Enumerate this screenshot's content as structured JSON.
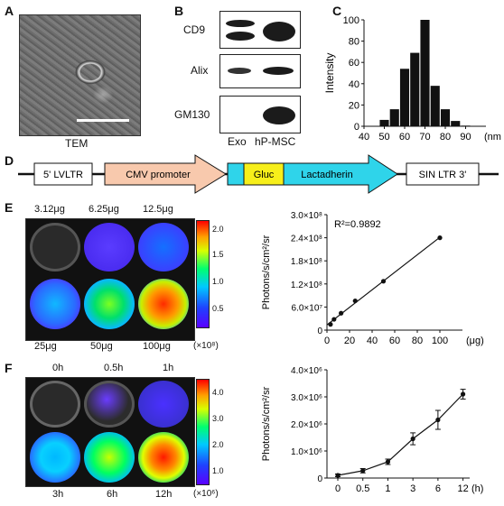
{
  "panels": {
    "A": {
      "label": "A",
      "caption": "TEM"
    },
    "B": {
      "label": "B",
      "rows": [
        "CD9",
        "Alix",
        "GM130"
      ],
      "lanes": [
        "Exo",
        "hP-MSC"
      ]
    },
    "C": {
      "label": "C"
    },
    "D": {
      "label": "D",
      "segments": [
        "5' LVLTR",
        "CMV promoter",
        "Gluc",
        "Lactadherin",
        "SIN LTR 3'"
      ]
    },
    "E": {
      "label": "E",
      "doses_top": [
        "3.12μg",
        "6.25μg",
        "12.5μg"
      ],
      "doses_bottom": [
        "25μg",
        "50μg",
        "100μg"
      ],
      "colorbar_ticks": [
        "2.0",
        "1.5",
        "1.0",
        "0.5"
      ],
      "colorbar_unit": "(×10⁸)"
    },
    "F": {
      "label": "F",
      "times_top": [
        "0h",
        "0.5h",
        "1h"
      ],
      "times_bottom": [
        "3h",
        "6h",
        "12h"
      ],
      "colorbar_ticks": [
        "4.0",
        "3.0",
        "2.0",
        "1.0"
      ],
      "colorbar_unit": "(×10⁶)"
    }
  },
  "chart_data": [
    {
      "id": "C",
      "type": "bar",
      "categories": [
        "45",
        "50",
        "55",
        "60",
        "65",
        "70",
        "75",
        "80",
        "85",
        "90"
      ],
      "values": [
        0,
        6,
        16,
        54,
        69,
        100,
        38,
        16,
        5,
        0.6
      ],
      "ylabel": "Intensity",
      "xunit": "(nm)",
      "xlim": [
        40,
        100
      ],
      "ylim": [
        0,
        100
      ],
      "xticks": [
        "40",
        "50",
        "60",
        "70",
        "80",
        "90"
      ],
      "yticks": [
        "0",
        "20",
        "40",
        "60",
        "80",
        "100"
      ]
    },
    {
      "id": "E",
      "type": "scatter",
      "x": [
        3.12,
        6.25,
        12.5,
        25,
        50,
        100
      ],
      "y": [
        15000000.0,
        28000000.0,
        44000000.0,
        76000000.0,
        127000000.0,
        240000000.0
      ],
      "annotation": "R²=0.9892",
      "ylabel": "Photons/s/cm²/sr",
      "xunit": "(μg)",
      "xlim": [
        0,
        120
      ],
      "ylim": [
        0,
        300000000.0
      ],
      "xticks": [
        "0",
        "20",
        "40",
        "60",
        "80",
        "100"
      ],
      "yticks": [
        "0",
        "6.0×10⁷",
        "1.2×10⁸",
        "1.8×10⁸",
        "2.4×10⁸",
        "3.0×10⁸"
      ]
    },
    {
      "id": "F",
      "type": "line",
      "categories": [
        "0",
        "0.5",
        "1",
        "3",
        "6",
        "12"
      ],
      "values": [
        100000.0,
        270000.0,
        600000.0,
        1450000.0,
        2150000.0,
        3100000.0
      ],
      "errors": [
        50000.0,
        80000.0,
        100000.0,
        220000.0,
        350000.0,
        180000.0
      ],
      "ylabel": "Photons/s/cm²/sr",
      "xunit": "(h)",
      "ylim": [
        0,
        4000000.0
      ],
      "yticks": [
        "0",
        "1.0×10⁶",
        "2.0×10⁶",
        "3.0×10⁶",
        "4.0×10⁶"
      ]
    }
  ]
}
